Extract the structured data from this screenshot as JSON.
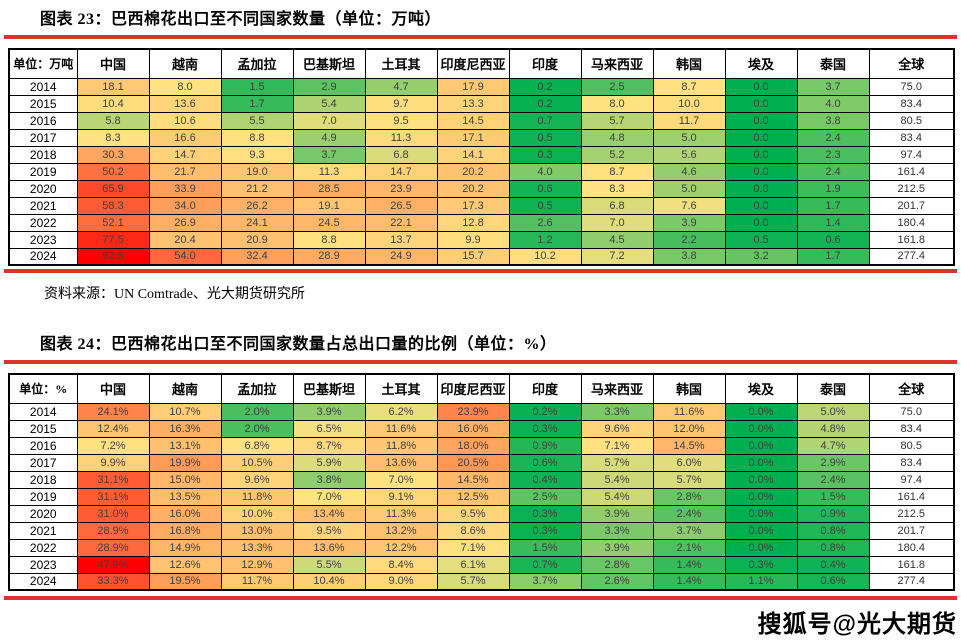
{
  "colors": {
    "accent_rule": "#d9342b",
    "scale_min_green": "#00b050",
    "scale_mid_yellow": "#ffe383",
    "scale_max_red": "#ff0000"
  },
  "watermark": {
    "text": "搜狐号@光大期货"
  },
  "chart_data": [
    {
      "type": "heatmap",
      "title": "图表 23：巴西棉花出口至不同国家数量（单位：万吨）",
      "corner_label": "单位：万吨",
      "columns": [
        "中国",
        "越南",
        "孟加拉",
        "巴基斯坦",
        "土耳其",
        "印度尼西亚",
        "印度",
        "马来西亚",
        "韩国",
        "埃及",
        "泰国",
        "全球"
      ],
      "years": [
        "2014",
        "2015",
        "2016",
        "2017",
        "2018",
        "2019",
        "2020",
        "2021",
        "2022",
        "2023",
        "2024"
      ],
      "values": [
        [
          "18.1",
          "8.0",
          "1.5",
          "2.9",
          "4.7",
          "17.9",
          "0.2",
          "2.5",
          "8.7",
          "0.0",
          "3.7",
          "75.0"
        ],
        [
          "10.4",
          "13.6",
          "1.7",
          "5.4",
          "9.7",
          "13.3",
          "0.2",
          "8.0",
          "10.0",
          "0.0",
          "4.0",
          "83.4"
        ],
        [
          "5.8",
          "10.6",
          "5.5",
          "7.0",
          "9.5",
          "14.5",
          "0.7",
          "5.7",
          "11.7",
          "0.0",
          "3.8",
          "80.5"
        ],
        [
          "8.3",
          "16.6",
          "8.8",
          "4.9",
          "11.3",
          "17.1",
          "0.5",
          "4.8",
          "5.0",
          "0.0",
          "2.4",
          "83.4"
        ],
        [
          "30.3",
          "14.7",
          "9.3",
          "3.7",
          "6.8",
          "14.1",
          "0.3",
          "5.2",
          "5.6",
          "0.0",
          "2.3",
          "97.4"
        ],
        [
          "50.2",
          "21.7",
          "19.0",
          "11.3",
          "14.7",
          "20.2",
          "4.0",
          "8.7",
          "4.6",
          "0.0",
          "2.4",
          "161.4"
        ],
        [
          "65.9",
          "33.9",
          "21.2",
          "28.5",
          "23.9",
          "20.2",
          "0.6",
          "8.3",
          "5.0",
          "0.0",
          "1.9",
          "212.5"
        ],
        [
          "58.3",
          "34.0",
          "26.2",
          "19.1",
          "26.5",
          "17.3",
          "0.5",
          "6.8",
          "7.6",
          "0.0",
          "1.7",
          "201.7"
        ],
        [
          "52.1",
          "26.9",
          "24.1",
          "24.5",
          "22.1",
          "12.8",
          "2.6",
          "7.0",
          "3.9",
          "0.0",
          "1.4",
          "180.4"
        ],
        [
          "77.5",
          "20.4",
          "20.9",
          "8.8",
          "13.7",
          "9.9",
          "1.2",
          "4.5",
          "2.2",
          "0.5",
          "0.6",
          "161.8"
        ],
        [
          "92.5",
          "54.0",
          "32.4",
          "28.9",
          "24.9",
          "15.7",
          "10.2",
          "7.2",
          "3.8",
          "3.2",
          "1.7",
          "277.4"
        ]
      ],
      "heatmap_note": "3-color scale green(min)-yellow(median)-red(max) applied to all columns except 全球",
      "source": "资料来源：UN Comtrade、光大期货研究所"
    },
    {
      "type": "heatmap",
      "title": "图表 24：巴西棉花出口至不同国家数量占总出口量的比例（单位：%）",
      "corner_label": "单位：%",
      "columns": [
        "中国",
        "越南",
        "孟加拉",
        "巴基斯坦",
        "土耳其",
        "印度尼西亚",
        "印度",
        "马来西亚",
        "韩国",
        "埃及",
        "泰国",
        "全球"
      ],
      "years": [
        "2014",
        "2015",
        "2016",
        "2017",
        "2018",
        "2019",
        "2020",
        "2021",
        "2022",
        "2023",
        "2024"
      ],
      "values": [
        [
          "24.1%",
          "10.7%",
          "2.0%",
          "3.9%",
          "6.2%",
          "23.9%",
          "0.2%",
          "3.3%",
          "11.6%",
          "0.0%",
          "5.0%",
          "75.0"
        ],
        [
          "12.4%",
          "16.3%",
          "2.0%",
          "6.5%",
          "11.6%",
          "16.0%",
          "0.3%",
          "9.6%",
          "12.0%",
          "0.0%",
          "4.8%",
          "83.4"
        ],
        [
          "7.2%",
          "13.1%",
          "6.8%",
          "8.7%",
          "11.8%",
          "18.0%",
          "0.9%",
          "7.1%",
          "14.5%",
          "0.0%",
          "4.7%",
          "80.5"
        ],
        [
          "9.9%",
          "19.9%",
          "10.5%",
          "5.9%",
          "13.6%",
          "20.5%",
          "0.6%",
          "5.7%",
          "6.0%",
          "0.0%",
          "2.9%",
          "83.4"
        ],
        [
          "31.1%",
          "15.0%",
          "9.6%",
          "3.8%",
          "7.0%",
          "14.5%",
          "0.4%",
          "5.4%",
          "5.7%",
          "0.0%",
          "2.4%",
          "97.4"
        ],
        [
          "31.1%",
          "13.5%",
          "11.8%",
          "7.0%",
          "9.1%",
          "12.5%",
          "2.5%",
          "5.4%",
          "2.8%",
          "0.0%",
          "1.5%",
          "161.4"
        ],
        [
          "31.0%",
          "16.0%",
          "10.0%",
          "13.4%",
          "11.3%",
          "9.5%",
          "0.3%",
          "3.9%",
          "2.4%",
          "0.0%",
          "0.9%",
          "212.5"
        ],
        [
          "28.9%",
          "16.8%",
          "13.0%",
          "9.5%",
          "13.2%",
          "8.6%",
          "0.3%",
          "3.3%",
          "3.7%",
          "0.0%",
          "0.8%",
          "201.7"
        ],
        [
          "28.9%",
          "14.9%",
          "13.3%",
          "13.6%",
          "12.2%",
          "7.1%",
          "1.5%",
          "3.9%",
          "2.1%",
          "0.0%",
          "0.8%",
          "180.4"
        ],
        [
          "47.9%",
          "12.6%",
          "12.9%",
          "5.5%",
          "8.4%",
          "6.1%",
          "0.7%",
          "2.8%",
          "1.4%",
          "0.3%",
          "0.4%",
          "161.8"
        ],
        [
          "33.3%",
          "19.5%",
          "11.7%",
          "10.4%",
          "9.0%",
          "5.7%",
          "3.7%",
          "2.6%",
          "1.4%",
          "1.1%",
          "0.6%",
          "277.4"
        ]
      ],
      "heatmap_note": "3-color scale green(min)-yellow(median)-red(max) applied to all columns except 全球"
    }
  ]
}
